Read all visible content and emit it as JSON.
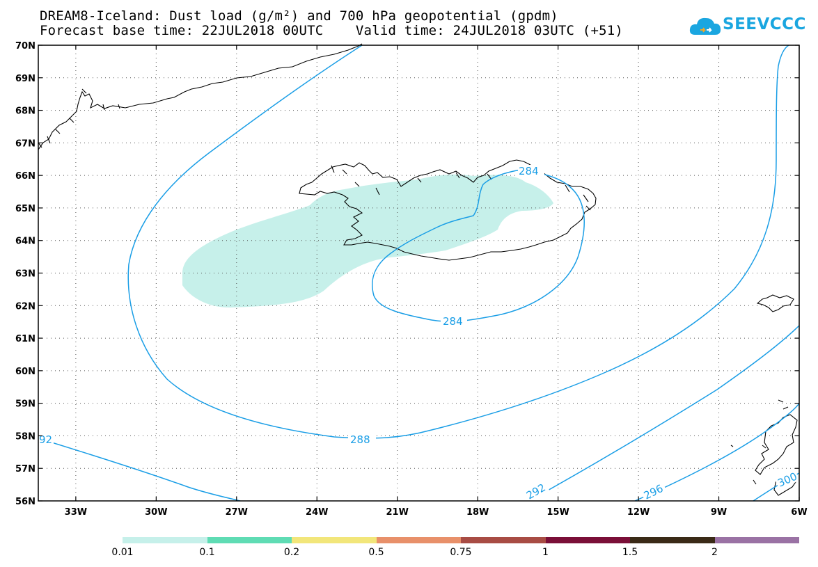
{
  "title": {
    "line1": "DREAM8-Iceland: Dust load (g/m²) and 700 hPa geopotential (gpdm)",
    "line2": "Forecast base time: 22JUL2018 00UTC    Valid time: 24JUL2018 03UTC (+51)"
  },
  "logo": {
    "text": "SEEVCCC",
    "icon": "cloud-icon"
  },
  "map": {
    "lon_range": [
      -34.4,
      -6
    ],
    "lat_range": [
      56,
      70
    ],
    "lat_labels": [
      "70N",
      "69N",
      "68N",
      "67N",
      "66N",
      "65N",
      "64N",
      "63N",
      "62N",
      "61N",
      "60N",
      "59N",
      "58N",
      "57N",
      "56N"
    ],
    "lon_labels": [
      "33W",
      "30W",
      "27W",
      "24W",
      "21W",
      "18W",
      "15W",
      "12W",
      "9W",
      "6W"
    ],
    "contour_labels": [
      "284",
      "284",
      "288",
      "92",
      "292",
      "296",
      "300"
    ],
    "contour_color": "#1a9ee6",
    "dust_fill_color": "#c6f0ea"
  },
  "colorbar": {
    "labels": [
      "0.01",
      "0.1",
      "0.2",
      "0.5",
      "0.75",
      "1",
      "1.5",
      "2"
    ],
    "colors": [
      "#c6f0ea",
      "#5fdcb4",
      "#f2e67a",
      "#e8906a",
      "#a84c44",
      "#7a0f38",
      "#3a2a17",
      "#9a72a4"
    ]
  }
}
